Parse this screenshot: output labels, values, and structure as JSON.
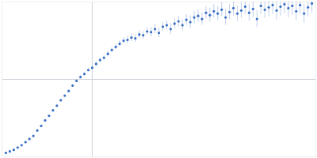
{
  "chart_data": {
    "type": "scatter",
    "color": "#3a6fc4",
    "marker": "circle",
    "grid": true,
    "tick_labels": false,
    "xlim": [
      0,
      400
    ],
    "ylim": [
      0,
      200
    ],
    "xticks": [
      115
    ],
    "yticks": [
      100
    ],
    "x": [
      5,
      10,
      15,
      20,
      25,
      30,
      35,
      40,
      45,
      50,
      55,
      60,
      65,
      70,
      75,
      80,
      85,
      90,
      95,
      100,
      105,
      110,
      115,
      120,
      125,
      130,
      135,
      140,
      145,
      150,
      155,
      160,
      165,
      170,
      175,
      180,
      185,
      190,
      195,
      200,
      205,
      210,
      215,
      220,
      225,
      230,
      235,
      240,
      245,
      250,
      255,
      260,
      265,
      270,
      275,
      280,
      285,
      290,
      295,
      300,
      305,
      310,
      315,
      320,
      325,
      330,
      335,
      340,
      345,
      350,
      355,
      360,
      365,
      370,
      375,
      380,
      385,
      390,
      395
    ],
    "values": [
      5,
      7,
      9,
      12,
      15,
      19,
      23,
      27,
      34,
      40,
      47,
      53,
      60,
      66,
      73,
      79,
      85,
      92,
      98,
      103,
      107,
      112,
      115,
      120,
      125,
      128,
      133,
      138,
      142,
      146,
      150,
      151,
      154,
      153,
      158,
      157,
      162,
      161,
      165,
      160,
      168,
      170,
      165,
      172,
      175,
      170,
      177,
      174,
      180,
      182,
      178,
      186,
      183,
      188,
      185,
      190,
      180,
      187,
      192,
      185,
      189,
      194,
      186,
      191,
      178,
      195,
      190,
      193,
      196,
      189,
      194,
      197,
      192,
      195,
      188,
      196,
      185,
      193,
      198
    ],
    "errors": [
      1,
      1,
      1,
      1,
      1,
      1,
      1,
      1,
      1,
      1,
      1,
      1,
      1,
      1,
      1,
      1,
      1,
      1,
      1,
      2,
      2,
      2,
      2,
      3,
      3,
      3,
      3,
      3,
      4,
      4,
      4,
      5,
      5,
      5,
      5,
      5,
      5,
      6,
      6,
      6,
      6,
      6,
      7,
      7,
      7,
      7,
      7,
      8,
      8,
      8,
      8,
      8,
      9,
      9,
      9,
      9,
      10,
      10,
      10,
      10,
      10,
      10,
      11,
      11,
      11,
      11,
      11,
      12,
      12,
      12,
      12,
      12,
      12,
      12,
      12,
      12,
      12,
      12,
      12
    ]
  }
}
